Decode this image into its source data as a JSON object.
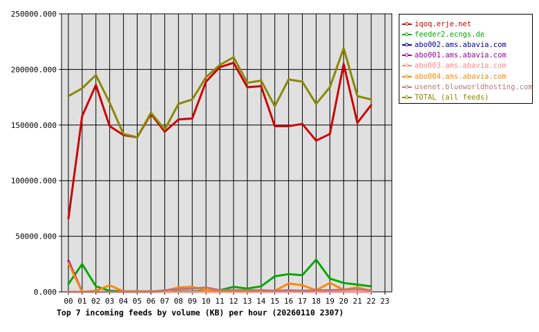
{
  "chart_data": {
    "type": "line",
    "title": "Top 7 incoming feeds by volume (KB) per hour (20260110 2307)",
    "x": [
      "00",
      "01",
      "02",
      "03",
      "04",
      "05",
      "06",
      "07",
      "08",
      "09",
      "10",
      "11",
      "12",
      "13",
      "14",
      "15",
      "16",
      "17",
      "18",
      "19",
      "20",
      "21",
      "22",
      "23"
    ],
    "ylim": [
      0,
      250000
    ],
    "yticks": [
      "0.000",
      "50000.000",
      "100000.000",
      "150000.000",
      "200000.000",
      "250000.000"
    ],
    "ytick_values": [
      0,
      50000,
      100000,
      150000,
      200000,
      250000
    ],
    "grid": true,
    "legend_position": "right",
    "series": [
      {
        "name": "iqoq.erje.net",
        "color": "#cc0000",
        "values": [
          66000,
          158000,
          186000,
          149000,
          141000,
          139000,
          160000,
          144000,
          155000,
          156000,
          189000,
          202000,
          206000,
          184000,
          185000,
          149000,
          149000,
          151000,
          136000,
          142000,
          205000,
          152000,
          168000,
          null
        ]
      },
      {
        "name": "feeder2.ecngs.de",
        "color": "#00aa00",
        "values": [
          7000,
          25000,
          5000,
          1000,
          500,
          500,
          500,
          500,
          500,
          500,
          1000,
          1500,
          4500,
          3000,
          5000,
          14000,
          16000,
          15000,
          29000,
          12000,
          8000,
          6500,
          5000,
          null
        ]
      },
      {
        "name": "abo002.ams.abavia.com",
        "color": "#000099",
        "values": [
          0,
          0,
          0,
          0,
          0,
          0,
          0,
          0,
          0,
          0,
          0,
          0,
          0,
          0,
          0,
          0,
          0,
          0,
          0,
          0,
          0,
          0,
          0,
          null
        ]
      },
      {
        "name": "abo001.ams.abavia.com",
        "color": "#990099",
        "values": [
          28000,
          0,
          0,
          0,
          0,
          0,
          0,
          0,
          0,
          0,
          0,
          0,
          0,
          0,
          0,
          0,
          0,
          0,
          0,
          0,
          0,
          0,
          0,
          null
        ]
      },
      {
        "name": "abo003.ams.abavia.com",
        "color": "#ff8888",
        "values": [
          0,
          0,
          0,
          0,
          0,
          0,
          0,
          0,
          0,
          0,
          0,
          0,
          0,
          0,
          0,
          0,
          0,
          0,
          0,
          0,
          0,
          0,
          0,
          null
        ]
      },
      {
        "name": "abo004.ams.abavia.com",
        "color": "#ff8800",
        "values": [
          26000,
          0,
          1000,
          6000,
          500,
          500,
          500,
          1000,
          4000,
          4500,
          1500,
          1000,
          1000,
          1000,
          1000,
          1000,
          7500,
          6000,
          1500,
          8000,
          2000,
          4000,
          1000,
          null
        ]
      },
      {
        "name": "usenet.blueworldhosting.com",
        "color": "#bb7777",
        "values": [
          0,
          0,
          0,
          0,
          0,
          0,
          0,
          1500,
          2500,
          3000,
          4000,
          1500,
          1500,
          1500,
          1500,
          1000,
          1500,
          1000,
          1500,
          1500,
          2000,
          2500,
          1500,
          null
        ]
      },
      {
        "name": "TOTAL (all feeds)",
        "color": "#888800",
        "values": [
          176000,
          183000,
          195000,
          170000,
          142000,
          139000,
          161000,
          146000,
          169000,
          173000,
          193000,
          204000,
          211000,
          188000,
          190000,
          167000,
          191000,
          189000,
          169000,
          184000,
          219000,
          176000,
          173000,
          null
        ]
      }
    ]
  }
}
